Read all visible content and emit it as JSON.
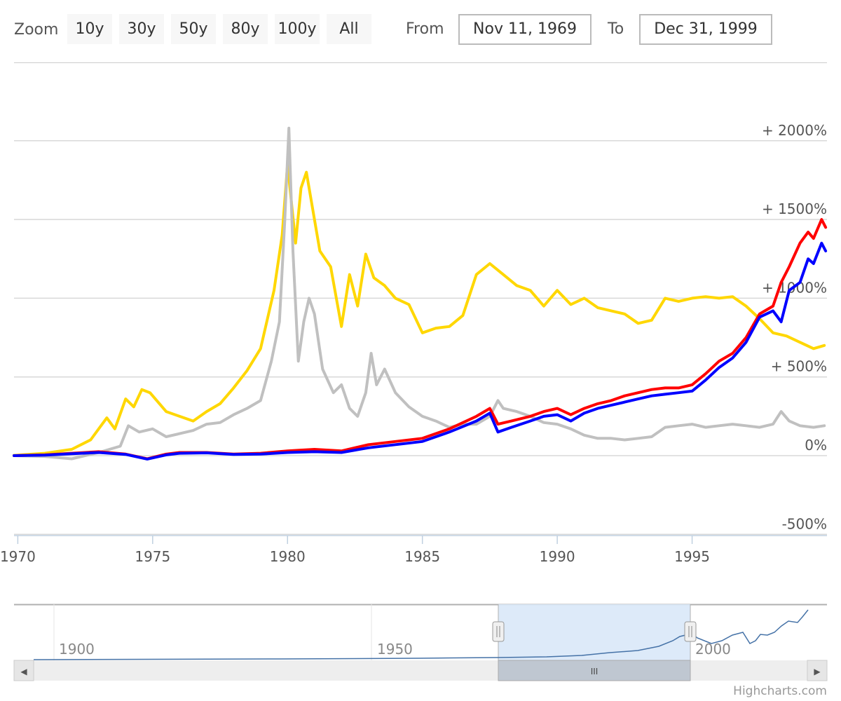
{
  "range_selector": {
    "zoom_label": "Zoom",
    "buttons": [
      "10y",
      "30y",
      "50y",
      "80y",
      "100y",
      "All"
    ],
    "from_label": "From",
    "from_value": "Nov 11, 1969",
    "to_label": "To",
    "to_value": "Dec 31, 1999"
  },
  "chart_data": {
    "type": "line",
    "title": "",
    "xlabel": "",
    "ylabel": "",
    "xlim": [
      1969.86,
      2000.0
    ],
    "ylim": [
      -500,
      2500
    ],
    "x_tick_labels": [
      "1970",
      "1975",
      "1980",
      "1985",
      "1990",
      "1995"
    ],
    "y_tick_labels": [
      "-500%",
      "0%",
      "+ 500%",
      "+ 1000%",
      "+ 1500%",
      "+ 2000%"
    ],
    "grid": true,
    "legend": "none",
    "series": [
      {
        "color": "#ffd700",
        "x": [
          1969.86,
          1971,
          1972,
          1972.7,
          1973.3,
          1973.6,
          1974.0,
          1974.3,
          1974.6,
          1974.9,
          1975.2,
          1975.5,
          1976.0,
          1976.5,
          1977,
          1977.5,
          1978,
          1978.5,
          1979,
          1979.5,
          1979.8,
          1980.0,
          1980.3,
          1980.5,
          1980.7,
          1981,
          1981.2,
          1981.6,
          1982,
          1982.3,
          1982.6,
          1982.9,
          1983.2,
          1983.6,
          1984,
          1984.5,
          1985,
          1985.5,
          1986,
          1986.5,
          1987,
          1987.5,
          1988,
          1988.5,
          1989,
          1989.5,
          1990,
          1990.5,
          1991,
          1991.5,
          1992,
          1992.5,
          1993,
          1993.5,
          1994,
          1994.5,
          1995,
          1995.5,
          1996,
          1996.5,
          1997,
          1997.5,
          1998,
          1998.5,
          1999,
          1999.5,
          1999.9
        ],
        "values": [
          2,
          15,
          40,
          100,
          240,
          170,
          360,
          310,
          420,
          400,
          340,
          280,
          250,
          220,
          280,
          330,
          430,
          540,
          680,
          1050,
          1400,
          1850,
          1350,
          1700,
          1800,
          1500,
          1300,
          1200,
          820,
          1150,
          950,
          1280,
          1130,
          1080,
          1000,
          960,
          780,
          810,
          820,
          890,
          1150,
          1220,
          1150,
          1080,
          1050,
          950,
          1050,
          960,
          1000,
          940,
          920,
          900,
          840,
          860,
          1000,
          980,
          1000,
          1010,
          1000,
          1010,
          950,
          870,
          780,
          760,
          720,
          680,
          700
        ]
      },
      {
        "color": "#c0c0c0",
        "x": [
          1969.86,
          1971,
          1972,
          1973,
          1973.8,
          1974.1,
          1974.5,
          1975,
          1975.5,
          1976,
          1976.5,
          1977,
          1977.5,
          1978,
          1978.5,
          1979,
          1979.4,
          1979.7,
          1979.9,
          1980.05,
          1980.2,
          1980.4,
          1980.6,
          1980.8,
          1981,
          1981.3,
          1981.7,
          1982,
          1982.3,
          1982.6,
          1982.9,
          1983.1,
          1983.3,
          1983.6,
          1984,
          1984.5,
          1985,
          1985.5,
          1986,
          1986.5,
          1987,
          1987.5,
          1987.8,
          1988,
          1988.5,
          1989,
          1989.5,
          1990,
          1990.5,
          1991,
          1991.5,
          1992,
          1992.5,
          1993,
          1993.5,
          1994,
          1994.5,
          1995,
          1995.5,
          1996,
          1996.5,
          1997,
          1997.5,
          1998,
          1998.3,
          1998.6,
          1999,
          1999.5,
          1999.9
        ],
        "values": [
          0,
          -5,
          -20,
          20,
          60,
          190,
          150,
          170,
          120,
          140,
          160,
          200,
          210,
          260,
          300,
          350,
          600,
          850,
          1500,
          2080,
          1300,
          600,
          850,
          1000,
          900,
          550,
          400,
          450,
          300,
          250,
          400,
          650,
          450,
          550,
          400,
          310,
          250,
          220,
          180,
          200,
          200,
          250,
          350,
          300,
          280,
          250,
          210,
          200,
          170,
          130,
          110,
          110,
          100,
          110,
          120,
          180,
          190,
          200,
          180,
          190,
          200,
          190,
          180,
          200,
          280,
          220,
          190,
          180,
          190
        ]
      },
      {
        "color": "#ff0000",
        "x": [
          1969.86,
          1971,
          1972,
          1973,
          1974,
          1974.8,
          1975.5,
          1976,
          1977,
          1978,
          1979,
          1980,
          1981,
          1982,
          1983,
          1984,
          1985,
          1986,
          1987,
          1987.5,
          1987.8,
          1988.3,
          1989,
          1989.5,
          1990,
          1990.5,
          1991,
          1991.5,
          1992,
          1992.5,
          1993,
          1993.5,
          1994,
          1994.5,
          1995,
          1995.5,
          1996,
          1996.5,
          1997,
          1997.5,
          1998,
          1998.3,
          1998.6,
          1999,
          1999.3,
          1999.5,
          1999.8,
          1999.95
        ],
        "values": [
          0,
          5,
          15,
          25,
          10,
          -20,
          10,
          20,
          20,
          10,
          15,
          30,
          40,
          30,
          70,
          90,
          110,
          170,
          250,
          300,
          200,
          220,
          250,
          280,
          300,
          260,
          300,
          330,
          350,
          380,
          400,
          420,
          430,
          430,
          450,
          520,
          600,
          650,
          750,
          900,
          950,
          1100,
          1200,
          1350,
          1420,
          1380,
          1500,
          1450
        ]
      },
      {
        "color": "#0000ff",
        "x": [
          1969.86,
          1971,
          1972,
          1973,
          1974,
          1974.8,
          1975.5,
          1976,
          1977,
          1978,
          1979,
          1980,
          1981,
          1982,
          1983,
          1984,
          1985,
          1986,
          1987,
          1987.5,
          1987.8,
          1988.3,
          1989,
          1989.5,
          1990,
          1990.5,
          1991,
          1991.5,
          1992,
          1992.5,
          1993,
          1993.5,
          1994,
          1994.5,
          1995,
          1995.5,
          1996,
          1996.5,
          1997,
          1997.5,
          1998,
          1998.3,
          1998.6,
          1999,
          1999.3,
          1999.5,
          1999.8,
          1999.95
        ],
        "values": [
          0,
          3,
          12,
          20,
          8,
          -22,
          5,
          15,
          18,
          8,
          10,
          20,
          25,
          20,
          50,
          70,
          90,
          150,
          220,
          270,
          150,
          180,
          220,
          250,
          260,
          220,
          270,
          300,
          320,
          340,
          360,
          380,
          390,
          400,
          410,
          480,
          560,
          620,
          720,
          880,
          920,
          850,
          1050,
          1100,
          1250,
          1220,
          1350,
          1300
        ]
      }
    ]
  },
  "navigator": {
    "x_tick_labels": [
      "1900",
      "1950",
      "2000"
    ],
    "series_color": "#4572a7"
  },
  "scrollbar": {
    "left_arrow": "◀",
    "right_arrow": "▶",
    "thumb_grip": "III"
  },
  "credits": "Highcharts.com"
}
